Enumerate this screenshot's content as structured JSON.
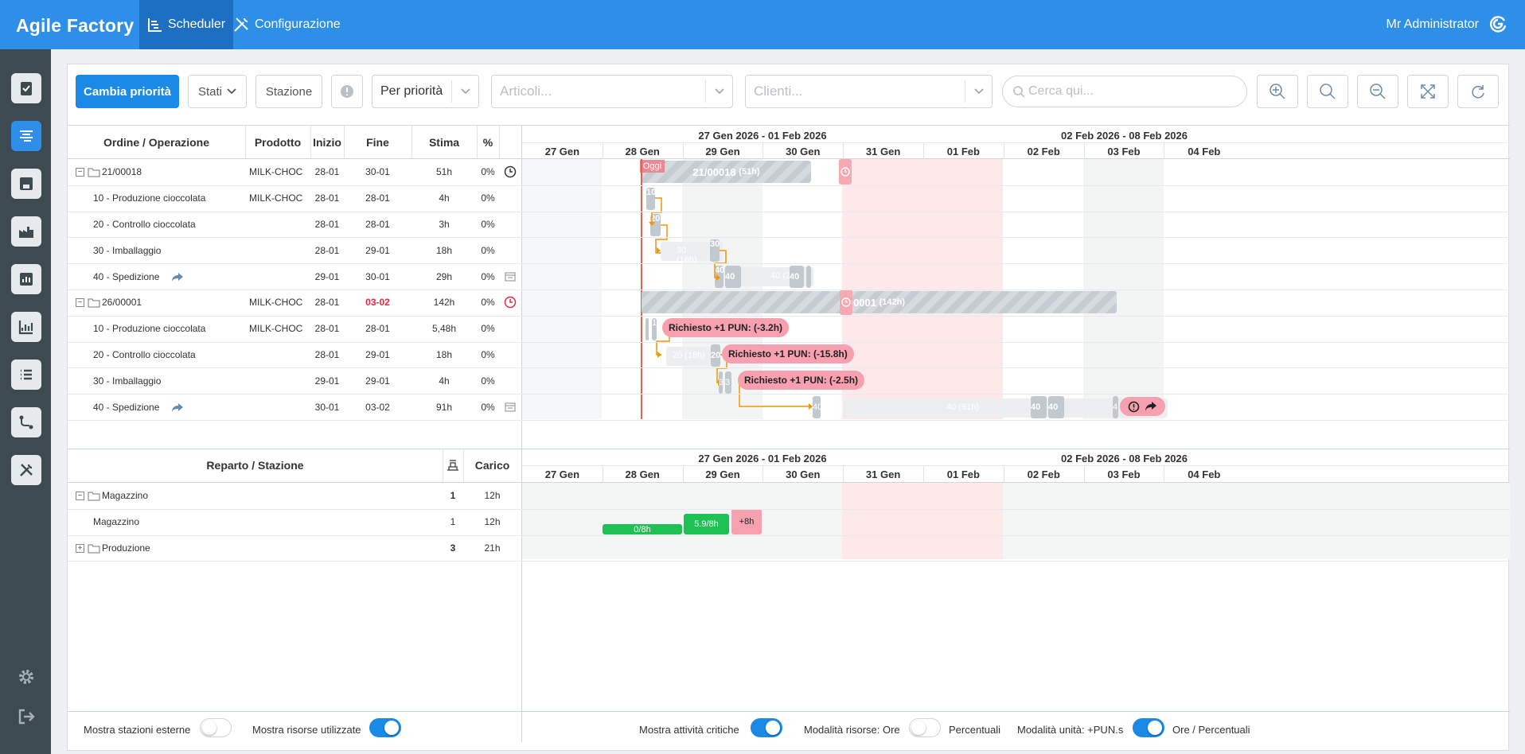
{
  "app": {
    "title": "Agile Factory",
    "user": "Mr Administrator"
  },
  "nav": {
    "scheduler": "Scheduler",
    "config": "Configurazione"
  },
  "toolbar": {
    "priority_btn": "Cambia priorità",
    "states": "Stati",
    "station": "Stazione",
    "sort": "Per priorità",
    "articles_ph": "Articoli...",
    "clients_ph": "Clienti...",
    "search_ph": "Cerca qui..."
  },
  "orders_table": {
    "headers": {
      "order": "Ordine / Operazione",
      "product": "Prodotto",
      "start": "Inizio",
      "end": "Fine",
      "estimate": "Stima",
      "pct": "%"
    },
    "rows": [
      {
        "name": "21/00018",
        "product": "MILK-CHOC",
        "start": "28-01",
        "end": "30-01",
        "est": "51h",
        "pct": "0%"
      },
      {
        "name": "10 - Produzione cioccolata",
        "product": "MILK-CHOC",
        "start": "28-01",
        "end": "28-01",
        "est": "4h",
        "pct": "0%"
      },
      {
        "name": "20 - Controllo cioccolata",
        "product": "",
        "start": "28-01",
        "end": "28-01",
        "est": "3h",
        "pct": "0%"
      },
      {
        "name": "30 - Imballaggio",
        "product": "",
        "start": "28-01",
        "end": "29-01",
        "est": "18h",
        "pct": "0%"
      },
      {
        "name": "40 - Spedizione",
        "product": "",
        "start": "29-01",
        "end": "30-01",
        "est": "29h",
        "pct": "0%"
      },
      {
        "name": "26/00001",
        "product": "MILK-CHOC",
        "start": "28-01",
        "end": "03-02",
        "est": "142h",
        "pct": "0%"
      },
      {
        "name": "10 - Produzione cioccolata",
        "product": "MILK-CHOC",
        "start": "28-01",
        "end": "28-01",
        "est": "5,48h",
        "pct": "0%"
      },
      {
        "name": "20 - Controllo cioccolata",
        "product": "",
        "start": "28-01",
        "end": "29-01",
        "est": "18h",
        "pct": "0%"
      },
      {
        "name": "30 - Imballaggio",
        "product": "",
        "start": "29-01",
        "end": "29-01",
        "est": "4h",
        "pct": "0%"
      },
      {
        "name": "40 - Spedizione",
        "product": "",
        "start": "30-01",
        "end": "03-02",
        "est": "91h",
        "pct": "0%"
      }
    ]
  },
  "calendar": {
    "week1": "27 Gen 2026 - 01 Feb 2026",
    "week2": "02 Feb 2026 - 08 Feb 2026",
    "days": [
      "27 Gen",
      "28 Gen",
      "29 Gen",
      "30 Gen",
      "31 Gen",
      "01 Feb",
      "02 Feb",
      "03 Feb",
      "04 Feb"
    ],
    "today": "Oggi"
  },
  "gantt": {
    "order1_label": "21/00018",
    "order1_hours": "(51h)",
    "order2_label": "6/00001",
    "order2_hours": "(142h)",
    "op10_1": "10",
    "op20_1": "20",
    "op30_1": "30",
    "ghost30_1": "30 (18h)",
    "op40a": "40",
    "op40b": "40",
    "op40c": "40",
    "ghost40_1": "40",
    "ghost40_2": "(29h)",
    "op10_2": "10",
    "op20_2": "20",
    "ghost20_2": "20 (18h)",
    "op30_2": "3",
    "op30_2b": "3",
    "op40_2a": "40",
    "ghost40_big": "40 (91h)",
    "op40_2b": "40",
    "op40_2c": "40",
    "op40_2d": "4",
    "warn1": "Richiesto +1 PUN: (-3.2h)",
    "warn2": "Richiesto +1 PUN: (-15.8h)",
    "warn3": "Richiesto +1 PUN: (-2.5h)"
  },
  "stations_table": {
    "headers": {
      "dept": "Reparto / Stazione",
      "load": "Carico"
    },
    "rows": [
      {
        "name": "Magazzino",
        "count": "1",
        "load": "12h"
      },
      {
        "name": "Magazzino",
        "count": "1",
        "load": "12h"
      },
      {
        "name": "Produzione",
        "count": "3",
        "load": "21h"
      }
    ],
    "load_bars": [
      "0/8h",
      "5.9/8h",
      "+8h"
    ]
  },
  "footer": {
    "ext": "Mostra stazioni esterne",
    "used": "Mostra risorse utilizzate",
    "critical": "Mostra attività critiche",
    "res_mode": "Modalità risorse: Ore",
    "pct": "Percentuali",
    "unit_mode": "Modalità unità: +PUN.s",
    "hours_pct": "Ore / Percentuali"
  },
  "colors": {
    "brand": "#2e8fe8",
    "accent": "#1a8ae6",
    "sidebar": "#3d4a52",
    "warning": "#f7a0b0",
    "ok": "#1fc054",
    "overdue": "#e8253a"
  }
}
